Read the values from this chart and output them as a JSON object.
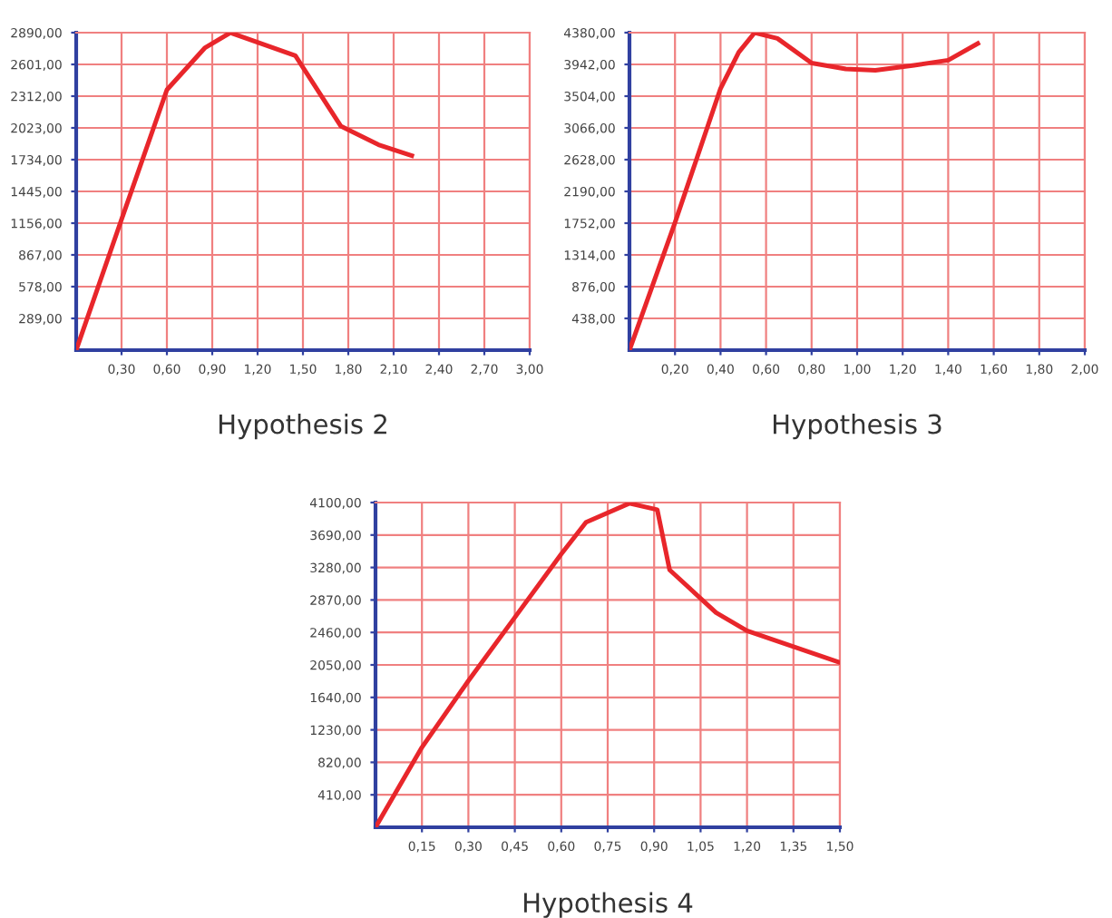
{
  "chart_data": [
    {
      "type": "line",
      "title": "Hypothesis 2",
      "x": [
        0,
        0.3,
        0.6,
        0.85,
        1.02,
        1.45,
        1.75,
        2.0,
        2.22
      ],
      "series": [
        {
          "color": "#e8262b",
          "values": [
            0,
            1190,
            2370,
            2750,
            2890,
            2680,
            2040,
            1870,
            1770
          ]
        }
      ],
      "xlim": [
        0,
        3.0
      ],
      "ylim": [
        0,
        2890
      ],
      "grid": true,
      "marker": "none",
      "line_style": "solid",
      "xticks": [
        {
          "value": 0.3,
          "label": "0,30"
        },
        {
          "value": 0.6,
          "label": "0,60"
        },
        {
          "value": 0.9,
          "label": "0,90"
        },
        {
          "value": 1.2,
          "label": "1,20"
        },
        {
          "value": 1.5,
          "label": "1,50"
        },
        {
          "value": 1.8,
          "label": "1,80"
        },
        {
          "value": 2.1,
          "label": "2,10"
        },
        {
          "value": 2.4,
          "label": "2,40"
        },
        {
          "value": 2.7,
          "label": "2,70"
        },
        {
          "value": 3.0,
          "label": "3,00"
        }
      ],
      "yticks": [
        {
          "value": 289,
          "label": "289,00"
        },
        {
          "value": 578,
          "label": "578,00"
        },
        {
          "value": 867,
          "label": "867,00"
        },
        {
          "value": 1156,
          "label": "1156,00"
        },
        {
          "value": 1445,
          "label": "1445,00"
        },
        {
          "value": 1734,
          "label": "1734,00"
        },
        {
          "value": 2023,
          "label": "2023,00"
        },
        {
          "value": 2312,
          "label": "2312,00"
        },
        {
          "value": 2601,
          "label": "2601,00"
        },
        {
          "value": 2890,
          "label": "2890,00"
        }
      ]
    },
    {
      "type": "line",
      "title": "Hypothesis 3",
      "x": [
        0,
        0.2,
        0.4,
        0.48,
        0.55,
        0.65,
        0.8,
        0.95,
        1.08,
        1.25,
        1.4,
        1.53
      ],
      "series": [
        {
          "color": "#e8262b",
          "values": [
            0,
            1760,
            3610,
            4110,
            4380,
            4300,
            3960,
            3880,
            3860,
            3930,
            4000,
            4230
          ]
        }
      ],
      "xlim": [
        0,
        2.0
      ],
      "ylim": [
        0,
        4380
      ],
      "grid": true,
      "marker": "none",
      "line_style": "solid",
      "xticks": [
        {
          "value": 0.2,
          "label": "0,20"
        },
        {
          "value": 0.4,
          "label": "0,40"
        },
        {
          "value": 0.6,
          "label": "0,60"
        },
        {
          "value": 0.8,
          "label": "0,80"
        },
        {
          "value": 1.0,
          "label": "1,00"
        },
        {
          "value": 1.2,
          "label": "1,20"
        },
        {
          "value": 1.4,
          "label": "1,40"
        },
        {
          "value": 1.6,
          "label": "1,60"
        },
        {
          "value": 1.8,
          "label": "1,80"
        },
        {
          "value": 2.0,
          "label": "2,00"
        }
      ],
      "yticks": [
        {
          "value": 438,
          "label": "438,00"
        },
        {
          "value": 876,
          "label": "876,00"
        },
        {
          "value": 1314,
          "label": "1314,00"
        },
        {
          "value": 1752,
          "label": "1752,00"
        },
        {
          "value": 2190,
          "label": "2190,00"
        },
        {
          "value": 2628,
          "label": "2628,00"
        },
        {
          "value": 3066,
          "label": "3066,00"
        },
        {
          "value": 3504,
          "label": "3504,00"
        },
        {
          "value": 3942,
          "label": "3942,00"
        },
        {
          "value": 4380,
          "label": "4380,00"
        }
      ]
    },
    {
      "type": "line",
      "title": "Hypothesis 4",
      "x": [
        0,
        0.15,
        0.3,
        0.45,
        0.6,
        0.68,
        0.82,
        0.91,
        0.95,
        1.1,
        1.2,
        1.5
      ],
      "series": [
        {
          "color": "#e8262b",
          "values": [
            0,
            1010,
            1850,
            2650,
            3450,
            3850,
            4090,
            4010,
            3250,
            2710,
            2480,
            2080
          ]
        }
      ],
      "xlim": [
        0,
        1.5
      ],
      "ylim": [
        0,
        4100
      ],
      "grid": true,
      "marker": "none",
      "line_style": "solid",
      "xticks": [
        {
          "value": 0.15,
          "label": "0,15"
        },
        {
          "value": 0.3,
          "label": "0,30"
        },
        {
          "value": 0.45,
          "label": "0,45"
        },
        {
          "value": 0.6,
          "label": "0,60"
        },
        {
          "value": 0.75,
          "label": "0,75"
        },
        {
          "value": 0.9,
          "label": "0,90"
        },
        {
          "value": 1.05,
          "label": "1,05"
        },
        {
          "value": 1.2,
          "label": "1,20"
        },
        {
          "value": 1.35,
          "label": "1,35"
        },
        {
          "value": 1.5,
          "label": "1,50"
        }
      ],
      "yticks": [
        {
          "value": 410,
          "label": "410,00"
        },
        {
          "value": 820,
          "label": "820,00"
        },
        {
          "value": 1230,
          "label": "1230,00"
        },
        {
          "value": 1640,
          "label": "1640,00"
        },
        {
          "value": 2050,
          "label": "2050,00"
        },
        {
          "value": 2460,
          "label": "2460,00"
        },
        {
          "value": 2870,
          "label": "2870,00"
        },
        {
          "value": 3280,
          "label": "3280,00"
        },
        {
          "value": 3690,
          "label": "3690,00"
        },
        {
          "value": 4100,
          "label": "4100,00"
        }
      ]
    }
  ]
}
